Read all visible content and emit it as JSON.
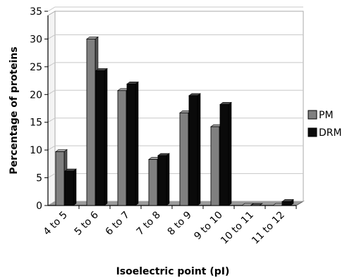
{
  "chart_data": {
    "type": "bar",
    "title": "",
    "xlabel": "Isoelectric point (pI)",
    "ylabel": "Percentage of proteins",
    "ylim": [
      0,
      35
    ],
    "yticks": [
      0,
      5,
      10,
      15,
      20,
      25,
      30,
      35
    ],
    "categories": [
      "4 to 5",
      "5 to 6",
      "6 to 7",
      "7 to 8",
      "8 to 9",
      "9 to 10",
      "10 to 11",
      "11 to 12"
    ],
    "series": [
      {
        "name": "PM",
        "color": "#808080",
        "values": [
          9.7,
          30.0,
          20.7,
          8.3,
          16.7,
          14.2,
          0.0,
          0.0
        ]
      },
      {
        "name": "DRM",
        "color": "#0a0a0a",
        "values": [
          6.2,
          24.3,
          21.9,
          9.0,
          19.8,
          18.2,
          0.0,
          0.7
        ]
      }
    ],
    "grid": true,
    "legend_position": "right",
    "style": "3d"
  }
}
